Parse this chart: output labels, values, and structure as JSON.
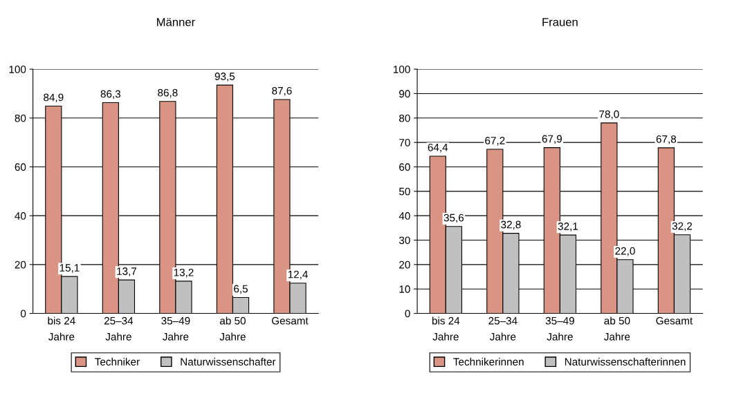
{
  "chart_data": [
    {
      "type": "bar",
      "title": "Männer",
      "categories": [
        "bis 24 Jahre",
        "25–34 Jahre",
        "35–49 Jahre",
        "ab 50 Jahre",
        "Gesamt"
      ],
      "series": [
        {
          "name": "Techniker",
          "color": "#d99484",
          "values": [
            84.9,
            86.3,
            86.8,
            93.5,
            87.6
          ],
          "value_labels": [
            "84,9",
            "86,3",
            "86,8",
            "93,5",
            "87,6"
          ]
        },
        {
          "name": "Naturwissenschafter",
          "color": "#c0c0c0",
          "values": [
            15.1,
            13.7,
            13.2,
            6.5,
            12.4
          ],
          "value_labels": [
            "15,1",
            "13,7",
            "13,2",
            "6,5",
            "12,4"
          ]
        }
      ],
      "ylim": [
        0,
        100
      ],
      "yticks": [
        0,
        20,
        40,
        60,
        80,
        100
      ],
      "grid": "y",
      "legend": "bottom"
    },
    {
      "type": "bar",
      "title": "Frauen",
      "categories": [
        "bis 24 Jahre",
        "25–34 Jahre",
        "35–49 Jahre",
        "ab 50 Jahre",
        "Gesamt"
      ],
      "series": [
        {
          "name": "Technikerinnen",
          "color": "#d99484",
          "values": [
            64.4,
            67.2,
            67.9,
            78.0,
            67.8
          ],
          "value_labels": [
            "64,4",
            "67,2",
            "67,9",
            "78,0",
            "67,8"
          ]
        },
        {
          "name": "Naturwissenschafterinnen",
          "color": "#c0c0c0",
          "values": [
            35.6,
            32.8,
            32.1,
            22.0,
            32.2
          ],
          "value_labels": [
            "35,6",
            "32,8",
            "32,1",
            "22,0",
            "32,2"
          ]
        }
      ],
      "ylim": [
        0,
        100
      ],
      "yticks": [
        0,
        10,
        20,
        30,
        40,
        50,
        60,
        70,
        80,
        90,
        100
      ],
      "grid": "y",
      "legend": "bottom"
    }
  ]
}
